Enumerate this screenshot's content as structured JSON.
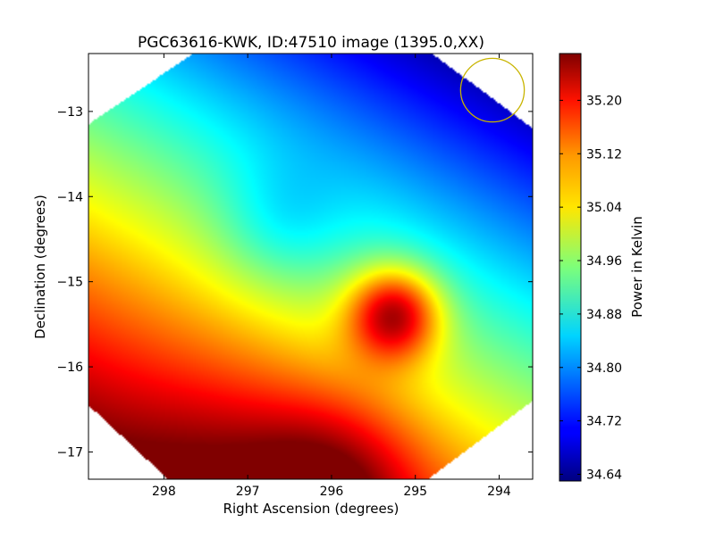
{
  "chart_data": {
    "type": "heatmap",
    "title": "PGC63616-KWK, ID:47510 image (1395.0,XX)",
    "xlabel": "Right Ascension (degrees)",
    "ylabel": "Declination (degrees)",
    "xlim": [
      298.9,
      293.6
    ],
    "ylim": [
      -17.32,
      -12.32
    ],
    "x_ticks": [
      298,
      297,
      296,
      295,
      294
    ],
    "y_ticks": [
      -13,
      -14,
      -15,
      -16,
      -17
    ],
    "colorbar": {
      "label": "Power in Kelvin",
      "min": 34.63,
      "max": 35.27,
      "ticks": [
        34.64,
        34.72,
        34.8,
        34.88,
        34.96,
        35.04,
        35.12,
        35.2
      ],
      "tick_labels": [
        "34.64",
        "34.72",
        "34.80",
        "34.88",
        "34.96",
        "35.04",
        "35.12",
        "35.20"
      ],
      "colormap": "jet"
    },
    "field": {
      "base_value": 34.64,
      "gradient": {
        "ra_per_deg": -0.05,
        "dec_per_deg": -0.09,
        "ref_ra": 294.0,
        "ref_dec": -12.5
      },
      "sources": [
        {
          "ra": 295.25,
          "dec": -15.38,
          "amplitude": 0.28,
          "sigma": 0.38
        },
        {
          "ra": 296.0,
          "dec": -17.4,
          "amplitude": 0.14,
          "sigma": 0.7
        },
        {
          "ra": 297.3,
          "dec": -17.2,
          "amplitude": 0.05,
          "sigma": 0.8
        },
        {
          "ra": 296.6,
          "dec": -14.35,
          "amplitude": -0.07,
          "sigma": 0.55
        }
      ]
    },
    "footprint": {
      "type": "octagon",
      "vertices": [
        [
          297.65,
          -12.32
        ],
        [
          294.8,
          -12.32
        ],
        [
          293.6,
          -13.2
        ],
        [
          293.6,
          -16.4
        ],
        [
          294.85,
          -17.32
        ],
        [
          297.95,
          -17.32
        ],
        [
          298.9,
          -16.45
        ],
        [
          298.9,
          -13.15
        ]
      ]
    },
    "beam_marker": {
      "ra": 294.08,
      "dec": -12.75,
      "radius_deg": 0.38,
      "color": "#c8b400"
    }
  }
}
